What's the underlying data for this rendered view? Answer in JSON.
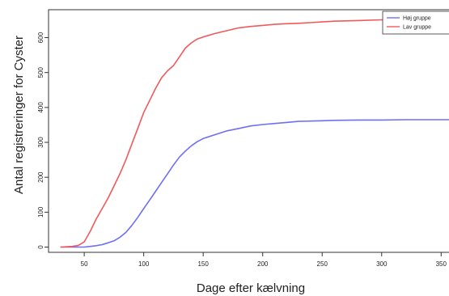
{
  "chart_data": {
    "type": "line",
    "xlabel": "Dage efter kælvning",
    "ylabel": "Antal registreringer for Cyster",
    "xlim": [
      20,
      360
    ],
    "ylim": [
      -15,
      680
    ],
    "x_ticks": [
      50,
      100,
      150,
      200,
      250,
      300,
      350
    ],
    "y_ticks": [
      0,
      100,
      200,
      300,
      400,
      500,
      600
    ],
    "grid": false,
    "legend_position": "top-right",
    "series": [
      {
        "name": "Høj gruppe",
        "color": "#6f6ff5",
        "x": [
          30,
          40,
          50,
          55,
          60,
          65,
          70,
          75,
          80,
          85,
          90,
          95,
          100,
          105,
          110,
          115,
          120,
          125,
          130,
          135,
          140,
          145,
          150,
          160,
          170,
          180,
          190,
          200,
          210,
          220,
          230,
          240,
          250,
          260,
          280,
          300,
          320,
          340,
          360
        ],
        "values": [
          0,
          0,
          0,
          2,
          4,
          7,
          12,
          18,
          28,
          42,
          62,
          85,
          110,
          135,
          160,
          185,
          210,
          235,
          258,
          275,
          290,
          302,
          311,
          322,
          333,
          340,
          347,
          351,
          354,
          357,
          360,
          361,
          362,
          363,
          364,
          364,
          365,
          365,
          365
        ]
      },
      {
        "name": "Lav gruppe",
        "color": "#f05a5a",
        "x": [
          30,
          40,
          45,
          50,
          55,
          60,
          65,
          70,
          75,
          80,
          85,
          90,
          95,
          100,
          105,
          110,
          115,
          120,
          125,
          130,
          135,
          140,
          145,
          150,
          160,
          170,
          180,
          190,
          200,
          210,
          220,
          230,
          240,
          250,
          260,
          280,
          300,
          320,
          340,
          360
        ],
        "values": [
          0,
          2,
          5,
          15,
          45,
          80,
          110,
          140,
          175,
          210,
          250,
          295,
          340,
          385,
          420,
          455,
          485,
          505,
          520,
          545,
          570,
          585,
          596,
          602,
          612,
          620,
          628,
          632,
          635,
          638,
          640,
          641,
          643,
          645,
          647,
          649,
          651,
          653,
          655,
          657
        ]
      }
    ]
  }
}
